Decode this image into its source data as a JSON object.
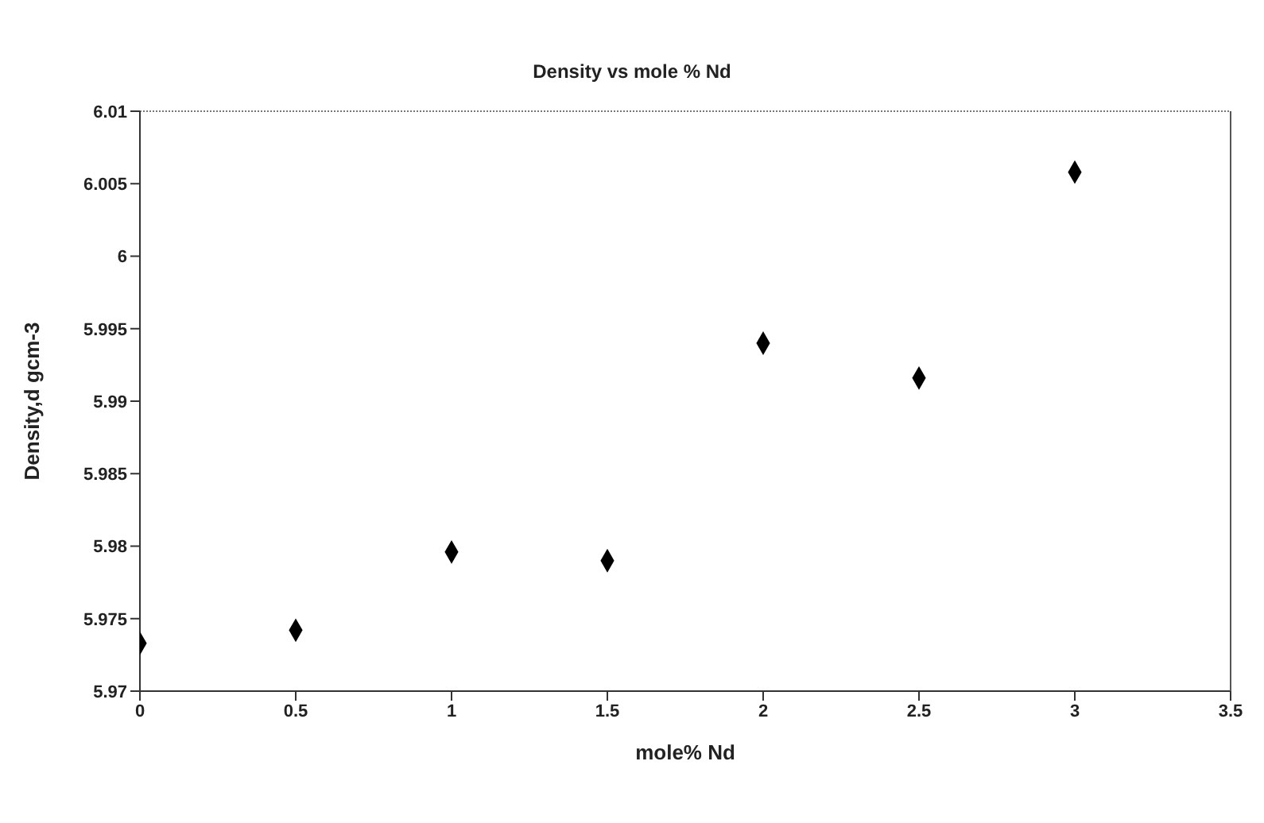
{
  "chart_data": {
    "type": "scatter",
    "title": "Density vs mole % Nd",
    "xlabel": "mole% Nd",
    "ylabel": "Density,d gcm-3",
    "x": [
      0,
      0.5,
      1,
      1.5,
      2,
      2.5,
      3
    ],
    "series": [
      {
        "color": "#000000",
        "values": [
          5.9733,
          5.9742,
          5.9796,
          5.979,
          5.994,
          5.9916,
          6.0058
        ]
      }
    ],
    "xlim": [
      0,
      3.5
    ],
    "xticks": [
      0,
      0.5,
      1,
      1.5,
      2,
      2.5,
      3,
      3.5
    ],
    "ylim": [
      5.97,
      6.01
    ],
    "yticks": [
      5.97,
      5.975,
      5.98,
      5.985,
      5.99,
      5.995,
      6,
      6.005,
      6.01
    ],
    "marker": "diamond",
    "grid": false,
    "legend": false
  }
}
